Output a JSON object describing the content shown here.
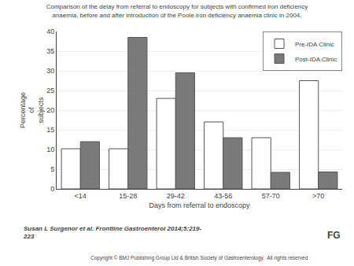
{
  "chart_data": {
    "type": "bar",
    "title": "Comparison of the delay from referral to endoscopy for subjects with confirmed iron deficiency\nanaemia, before and after introduction of the Poole iron deficiency anaemia clinic in 2004.",
    "xlabel": "Days from referral to endoscopy",
    "ylabel": "Percentage\nof\nsubjects",
    "categories": [
      "<14",
      "15-28",
      "29-42",
      "43-56",
      "57-70",
      ">70"
    ],
    "series": [
      {
        "name": "Pre-IDA Clinic",
        "color": "#ffffff",
        "values": [
          10.2,
          10.2,
          23.0,
          17.0,
          13.0,
          27.5
        ]
      },
      {
        "name": "Post-IDA Clinic",
        "color": "#7a7a7a",
        "values": [
          12.0,
          38.5,
          29.5,
          13.0,
          4.2,
          4.3
        ]
      }
    ],
    "ylim": [
      0,
      40
    ],
    "yticks": [
      0,
      5,
      10,
      15,
      20,
      25,
      30,
      35,
      40
    ],
    "grid": true,
    "legend": "upper right",
    "annotations": [
      "Susan L Surgenor et al. Frontline Gastroenterol 2014;5:219-\n223",
      "Copyright © BMJ Publishing Group Ltd & British Society of Gastroenterology.  All rights reserved",
      "FG"
    ]
  }
}
